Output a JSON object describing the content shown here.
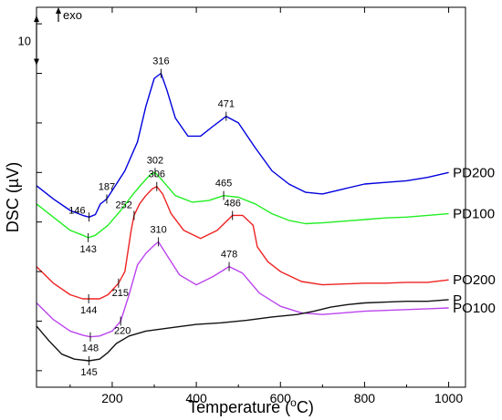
{
  "chart_data": {
    "type": "line",
    "xlabel": "Temperature (°C)",
    "xlabel_parts": {
      "main": "Temperature (",
      "sup": "o",
      "tail": "C)"
    },
    "ylabel": "DSC (µV)",
    "xlim": [
      20,
      1040
    ],
    "ylim": [
      0,
      460
    ],
    "xticks": [
      200,
      400,
      600,
      800,
      1000
    ],
    "yticks_unlabeled": true,
    "scale_bar": {
      "label": "10",
      "y_top": 450,
      "y_bottom": 390
    },
    "exo_label": "exo",
    "grid": false,
    "series": [
      {
        "name": "PD200",
        "color": "#0000dd",
        "points": [
          [
            20,
            244
          ],
          [
            60,
            228
          ],
          [
            100,
            214
          ],
          [
            130,
            208
          ],
          [
            145,
            206
          ],
          [
            160,
            209
          ],
          [
            172,
            222
          ],
          [
            180,
            225
          ],
          [
            187,
            228
          ],
          [
            200,
            238
          ],
          [
            230,
            262
          ],
          [
            260,
            297
          ],
          [
            280,
            340
          ],
          [
            300,
            374
          ],
          [
            316,
            380
          ],
          [
            330,
            360
          ],
          [
            350,
            326
          ],
          [
            380,
            304
          ],
          [
            410,
            304
          ],
          [
            440,
            316
          ],
          [
            471,
            328
          ],
          [
            500,
            320
          ],
          [
            540,
            290
          ],
          [
            580,
            262
          ],
          [
            620,
            246
          ],
          [
            660,
            236
          ],
          [
            700,
            234
          ],
          [
            750,
            240
          ],
          [
            800,
            246
          ],
          [
            850,
            248
          ],
          [
            900,
            250
          ],
          [
            950,
            254
          ],
          [
            1000,
            260
          ]
        ]
      },
      {
        "name": "PD100",
        "color": "#22ee22",
        "points": [
          [
            20,
            222
          ],
          [
            60,
            206
          ],
          [
            100,
            190
          ],
          [
            130,
            184
          ],
          [
            143,
            181
          ],
          [
            160,
            184
          ],
          [
            190,
            196
          ],
          [
            220,
            214
          ],
          [
            250,
            234
          ],
          [
            270,
            246
          ],
          [
            290,
            257
          ],
          [
            302,
            260
          ],
          [
            320,
            250
          ],
          [
            350,
            232
          ],
          [
            390,
            224
          ],
          [
            430,
            226
          ],
          [
            465,
            232
          ],
          [
            500,
            230
          ],
          [
            540,
            222
          ],
          [
            580,
            210
          ],
          [
            620,
            202
          ],
          [
            660,
            198
          ],
          [
            700,
            199
          ],
          [
            750,
            201
          ],
          [
            800,
            203
          ],
          [
            850,
            205
          ],
          [
            900,
            206
          ],
          [
            950,
            208
          ],
          [
            1000,
            210
          ]
        ]
      },
      {
        "name": "PO200",
        "color": "#ee2222",
        "points": [
          [
            20,
            146
          ],
          [
            60,
            126
          ],
          [
            100,
            112
          ],
          [
            130,
            107
          ],
          [
            144,
            107
          ],
          [
            170,
            107
          ],
          [
            190,
            112
          ],
          [
            215,
            126
          ],
          [
            230,
            140
          ],
          [
            245,
            190
          ],
          [
            252,
            208
          ],
          [
            265,
            222
          ],
          [
            280,
            232
          ],
          [
            295,
            240
          ],
          [
            306,
            243
          ],
          [
            320,
            234
          ],
          [
            340,
            210
          ],
          [
            370,
            190
          ],
          [
            410,
            180
          ],
          [
            450,
            190
          ],
          [
            486,
            208
          ],
          [
            510,
            208
          ],
          [
            535,
            196
          ],
          [
            545,
            170
          ],
          [
            570,
            152
          ],
          [
            600,
            140
          ],
          [
            650,
            128
          ],
          [
            700,
            124
          ],
          [
            750,
            125
          ],
          [
            800,
            126
          ],
          [
            850,
            126
          ],
          [
            900,
            127
          ],
          [
            950,
            127
          ],
          [
            1000,
            130
          ]
        ]
      },
      {
        "name": "PO100",
        "color": "#bb44ee",
        "points": [
          [
            20,
            102
          ],
          [
            60,
            82
          ],
          [
            100,
            68
          ],
          [
            130,
            63
          ],
          [
            148,
            61
          ],
          [
            170,
            62
          ],
          [
            200,
            68
          ],
          [
            220,
            80
          ],
          [
            240,
            112
          ],
          [
            260,
            148
          ],
          [
            280,
            162
          ],
          [
            300,
            172
          ],
          [
            310,
            176
          ],
          [
            330,
            160
          ],
          [
            360,
            136
          ],
          [
            400,
            124
          ],
          [
            440,
            134
          ],
          [
            478,
            146
          ],
          [
            510,
            138
          ],
          [
            550,
            114
          ],
          [
            600,
            98
          ],
          [
            650,
            90
          ],
          [
            700,
            88
          ],
          [
            750,
            90
          ],
          [
            800,
            92
          ],
          [
            850,
            93
          ],
          [
            900,
            94
          ],
          [
            950,
            95
          ],
          [
            1000,
            96
          ]
        ]
      },
      {
        "name": "P",
        "color": "#111111",
        "points": [
          [
            20,
            74
          ],
          [
            50,
            56
          ],
          [
            80,
            40
          ],
          [
            110,
            34
          ],
          [
            145,
            32
          ],
          [
            170,
            34
          ],
          [
            190,
            42
          ],
          [
            210,
            53
          ],
          [
            240,
            62
          ],
          [
            280,
            68
          ],
          [
            340,
            72
          ],
          [
            400,
            76
          ],
          [
            460,
            78
          ],
          [
            520,
            81
          ],
          [
            580,
            85
          ],
          [
            640,
            88
          ],
          [
            680,
            92
          ],
          [
            720,
            97
          ],
          [
            760,
            100
          ],
          [
            800,
            102
          ],
          [
            850,
            103
          ],
          [
            900,
            104
          ],
          [
            950,
            104
          ],
          [
            1000,
            106
          ]
        ]
      }
    ],
    "series_labels": [
      {
        "text": "PD200",
        "x": 1010,
        "y": 260
      },
      {
        "text": "PD100",
        "x": 1010,
        "y": 210
      },
      {
        "text": "PO200",
        "x": 1010,
        "y": 130
      },
      {
        "text": "PO100",
        "x": 1010,
        "y": 96
      },
      {
        "text": "P",
        "x": 1010,
        "y": 106
      }
    ],
    "annotations": [
      {
        "text": "316",
        "x": 316,
        "y": 380,
        "pos": "above"
      },
      {
        "text": "471",
        "x": 471,
        "y": 328,
        "pos": "above"
      },
      {
        "text": "187",
        "x": 187,
        "y": 228,
        "pos": "above"
      },
      {
        "text": "146",
        "x": 145,
        "y": 206,
        "pos": "left"
      },
      {
        "text": "302",
        "x": 302,
        "y": 260,
        "pos": "above"
      },
      {
        "text": "465",
        "x": 465,
        "y": 232,
        "pos": "above"
      },
      {
        "text": "143",
        "x": 143,
        "y": 181,
        "pos": "below"
      },
      {
        "text": "306",
        "x": 306,
        "y": 243,
        "pos": "above"
      },
      {
        "text": "252",
        "x": 252,
        "y": 208,
        "pos": "aboveleft"
      },
      {
        "text": "486",
        "x": 486,
        "y": 208,
        "pos": "above"
      },
      {
        "text": "144",
        "x": 144,
        "y": 107,
        "pos": "below"
      },
      {
        "text": "215",
        "x": 215,
        "y": 126,
        "pos": "belowright"
      },
      {
        "text": "310",
        "x": 310,
        "y": 176,
        "pos": "above"
      },
      {
        "text": "478",
        "x": 478,
        "y": 146,
        "pos": "above"
      },
      {
        "text": "220",
        "x": 220,
        "y": 80,
        "pos": "belowright"
      },
      {
        "text": "148",
        "x": 148,
        "y": 61,
        "pos": "below"
      },
      {
        "text": "145",
        "x": 145,
        "y": 32,
        "pos": "below"
      }
    ]
  }
}
